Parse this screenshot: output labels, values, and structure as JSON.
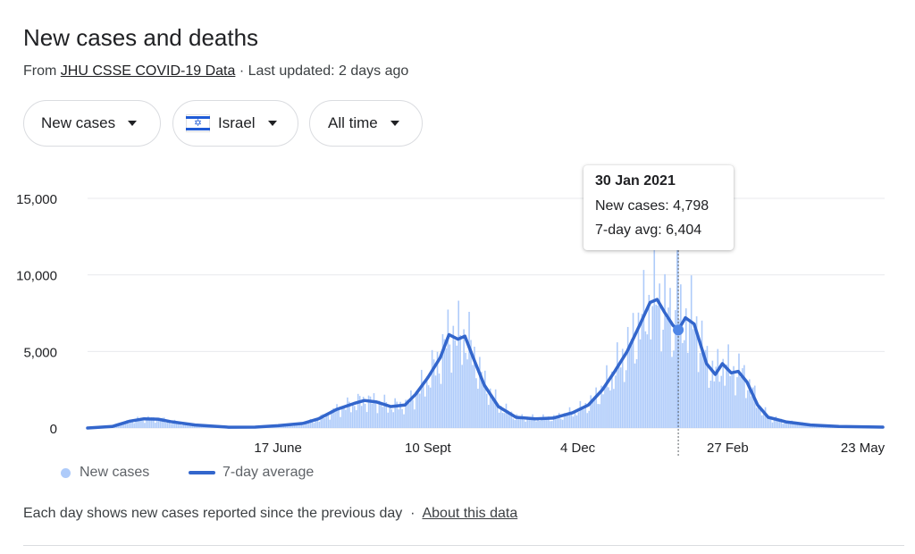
{
  "header": {
    "title": "New cases and deaths",
    "source_prefix": "From",
    "source_link": "JHU CSSE COVID-19 Data",
    "separator": "·",
    "last_updated": "Last updated: 2 days ago"
  },
  "filters": {
    "metric": "New cases",
    "country": "Israel",
    "range": "All time"
  },
  "tooltip": {
    "date": "30 Jan 2021",
    "new_cases_label": "New cases: 4,798",
    "avg_label": "7-day avg: 6,404",
    "new_cases": 4798,
    "avg": 6404
  },
  "legend": {
    "cases": "New cases",
    "avg": "7-day average"
  },
  "footer": {
    "note": "Each day shows new cases reported since the previous day",
    "separator": "·",
    "about_link": "About this data"
  },
  "colors": {
    "bars": "#aecbfa",
    "line": "#3366cc",
    "grid": "#e8eaed",
    "text": "#202124",
    "muted": "#5f6368"
  },
  "chart_data": {
    "type": "bar",
    "title": "",
    "xlabel": "",
    "ylabel": "",
    "ylim": [
      0,
      15000
    ],
    "yticks": [
      0,
      5000,
      10000,
      15000
    ],
    "ytick_labels": [
      "0",
      "5,000",
      "10,000",
      "15,000"
    ],
    "xtick_labels": [
      "17 June",
      "10 Sept",
      "4 Dec",
      "27 Feb",
      "23 May"
    ],
    "xtick_dates": [
      "2020-06-17",
      "2020-09-10",
      "2020-12-04",
      "2021-02-27",
      "2021-05-23"
    ],
    "grid": true,
    "legend_position": "bottom-left",
    "x_range": [
      "2020-03-01",
      "2021-05-26"
    ],
    "highlight": {
      "date": "2021-01-30",
      "new_cases": 4798,
      "avg": 6404
    },
    "series": [
      {
        "name": "7-day average",
        "kind": "line",
        "points": [
          [
            "2020-03-01",
            0
          ],
          [
            "2020-03-15",
            100
          ],
          [
            "2020-03-25",
            450
          ],
          [
            "2020-04-02",
            600
          ],
          [
            "2020-04-10",
            580
          ],
          [
            "2020-04-17",
            420
          ],
          [
            "2020-05-01",
            200
          ],
          [
            "2020-05-20",
            50
          ],
          [
            "2020-06-04",
            60
          ],
          [
            "2020-06-17",
            150
          ],
          [
            "2020-07-01",
            300
          ],
          [
            "2020-07-10",
            600
          ],
          [
            "2020-07-20",
            1200
          ],
          [
            "2020-07-30",
            1600
          ],
          [
            "2020-08-05",
            1800
          ],
          [
            "2020-08-12",
            1700
          ],
          [
            "2020-08-20",
            1400
          ],
          [
            "2020-08-28",
            1500
          ],
          [
            "2020-09-03",
            2200
          ],
          [
            "2020-09-10",
            3300
          ],
          [
            "2020-09-17",
            4600
          ],
          [
            "2020-09-22",
            6100
          ],
          [
            "2020-09-27",
            5800
          ],
          [
            "2020-10-01",
            6000
          ],
          [
            "2020-10-06",
            4500
          ],
          [
            "2020-10-12",
            2800
          ],
          [
            "2020-10-20",
            1400
          ],
          [
            "2020-10-30",
            700
          ],
          [
            "2020-11-10",
            600
          ],
          [
            "2020-11-20",
            650
          ],
          [
            "2020-12-01",
            1000
          ],
          [
            "2020-12-10",
            1500
          ],
          [
            "2020-12-18",
            2500
          ],
          [
            "2020-12-25",
            3700
          ],
          [
            "2021-01-01",
            5000
          ],
          [
            "2021-01-08",
            6700
          ],
          [
            "2021-01-14",
            8200
          ],
          [
            "2021-01-18",
            8400
          ],
          [
            "2021-01-22",
            7600
          ],
          [
            "2021-01-27",
            6700
          ],
          [
            "2021-01-30",
            6404
          ],
          [
            "2021-02-03",
            7200
          ],
          [
            "2021-02-08",
            6800
          ],
          [
            "2021-02-15",
            4200
          ],
          [
            "2021-02-20",
            3500
          ],
          [
            "2021-02-24",
            4200
          ],
          [
            "2021-03-01",
            3600
          ],
          [
            "2021-03-05",
            3700
          ],
          [
            "2021-03-10",
            3000
          ],
          [
            "2021-03-16",
            1500
          ],
          [
            "2021-03-22",
            700
          ],
          [
            "2021-04-01",
            400
          ],
          [
            "2021-04-15",
            200
          ],
          [
            "2021-05-01",
            100
          ],
          [
            "2021-05-26",
            60
          ]
        ]
      }
    ]
  }
}
